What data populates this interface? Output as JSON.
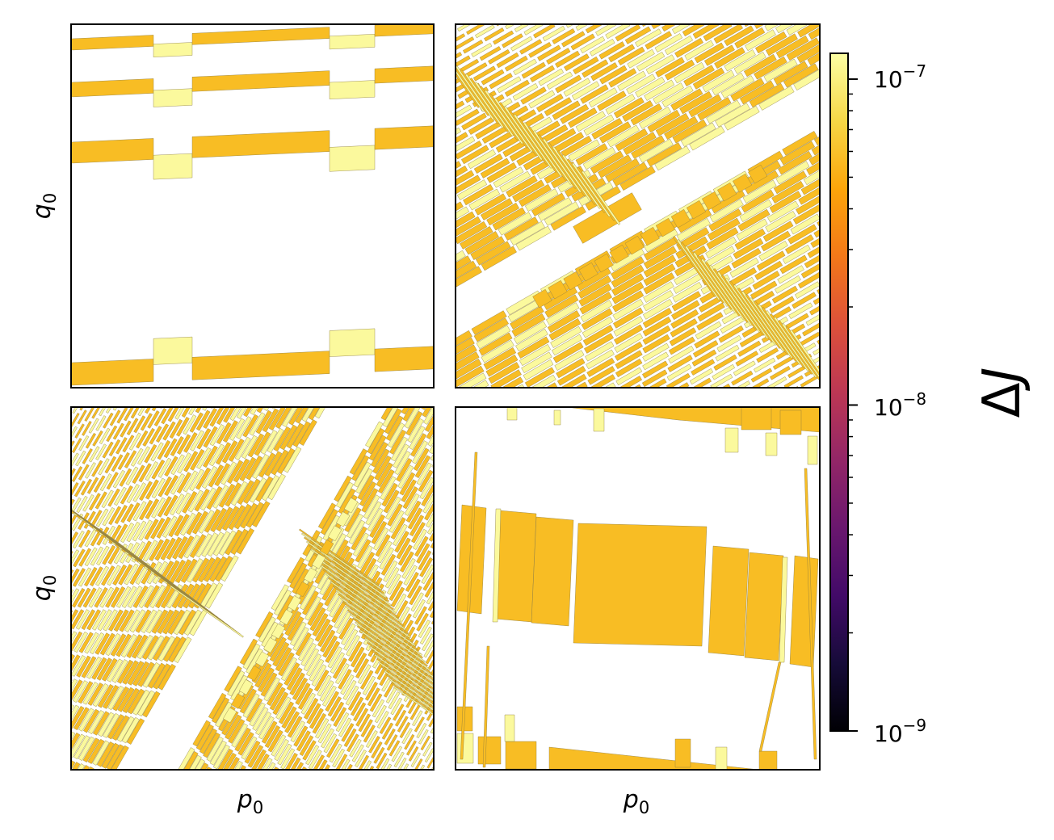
{
  "chart_data": [
    {
      "type": "heatmap",
      "panel": "top-left",
      "ylabel": "q",
      "ylabel_sub": "0",
      "xlabel": "",
      "xticks": [],
      "yticks": [],
      "pattern": "sparse horizontal stepped bands: three rows near the top, one row near the bottom, very gently sloped",
      "dominant_value_range": [
        5e-08,
        1.1e-07
      ]
    },
    {
      "type": "heatmap",
      "panel": "top-right",
      "ylabel": "",
      "xlabel": "",
      "xticks": [],
      "yticks": [],
      "pattern": "dense diagonal band structure rising left-to-right, white empty central diagonal channel",
      "dominant_value_range": [
        5e-08,
        1.1e-07
      ]
    },
    {
      "type": "heatmap",
      "panel": "bottom-left",
      "ylabel": "q",
      "ylabel_sub": "0",
      "xlabel": "p",
      "xlabel_sub": "0",
      "xticks": [],
      "yticks": [],
      "pattern": "very dense fine diagonal streaks with a white empty central diagonal channel",
      "dominant_value_range": [
        5e-08,
        1.1e-07
      ]
    },
    {
      "type": "heatmap",
      "panel": "bottom-right",
      "ylabel": "",
      "xlabel": "p",
      "xlabel_sub": "0",
      "xticks": [],
      "yticks": [],
      "pattern": "large tilted rectangular blocks in a central band with sparse strips near the edges",
      "dominant_value_range": [
        5e-08,
        1.1e-07
      ]
    }
  ],
  "colorbar": {
    "label": "ΔJ",
    "label_main": "Δ",
    "label_var": "J",
    "scale": "log",
    "range": [
      1e-09,
      1.2e-07
    ],
    "colormap": "inferno",
    "ticks": [
      {
        "value": 1e-07,
        "base": "10",
        "exp": "−7"
      },
      {
        "value": 1e-08,
        "base": "10",
        "exp": "−8"
      },
      {
        "value": 1e-09,
        "base": "10",
        "exp": "−9"
      }
    ]
  },
  "colors": {
    "orange": "#f8bd24",
    "pale": "#fbf99d",
    "edge": "#8a7a40"
  }
}
